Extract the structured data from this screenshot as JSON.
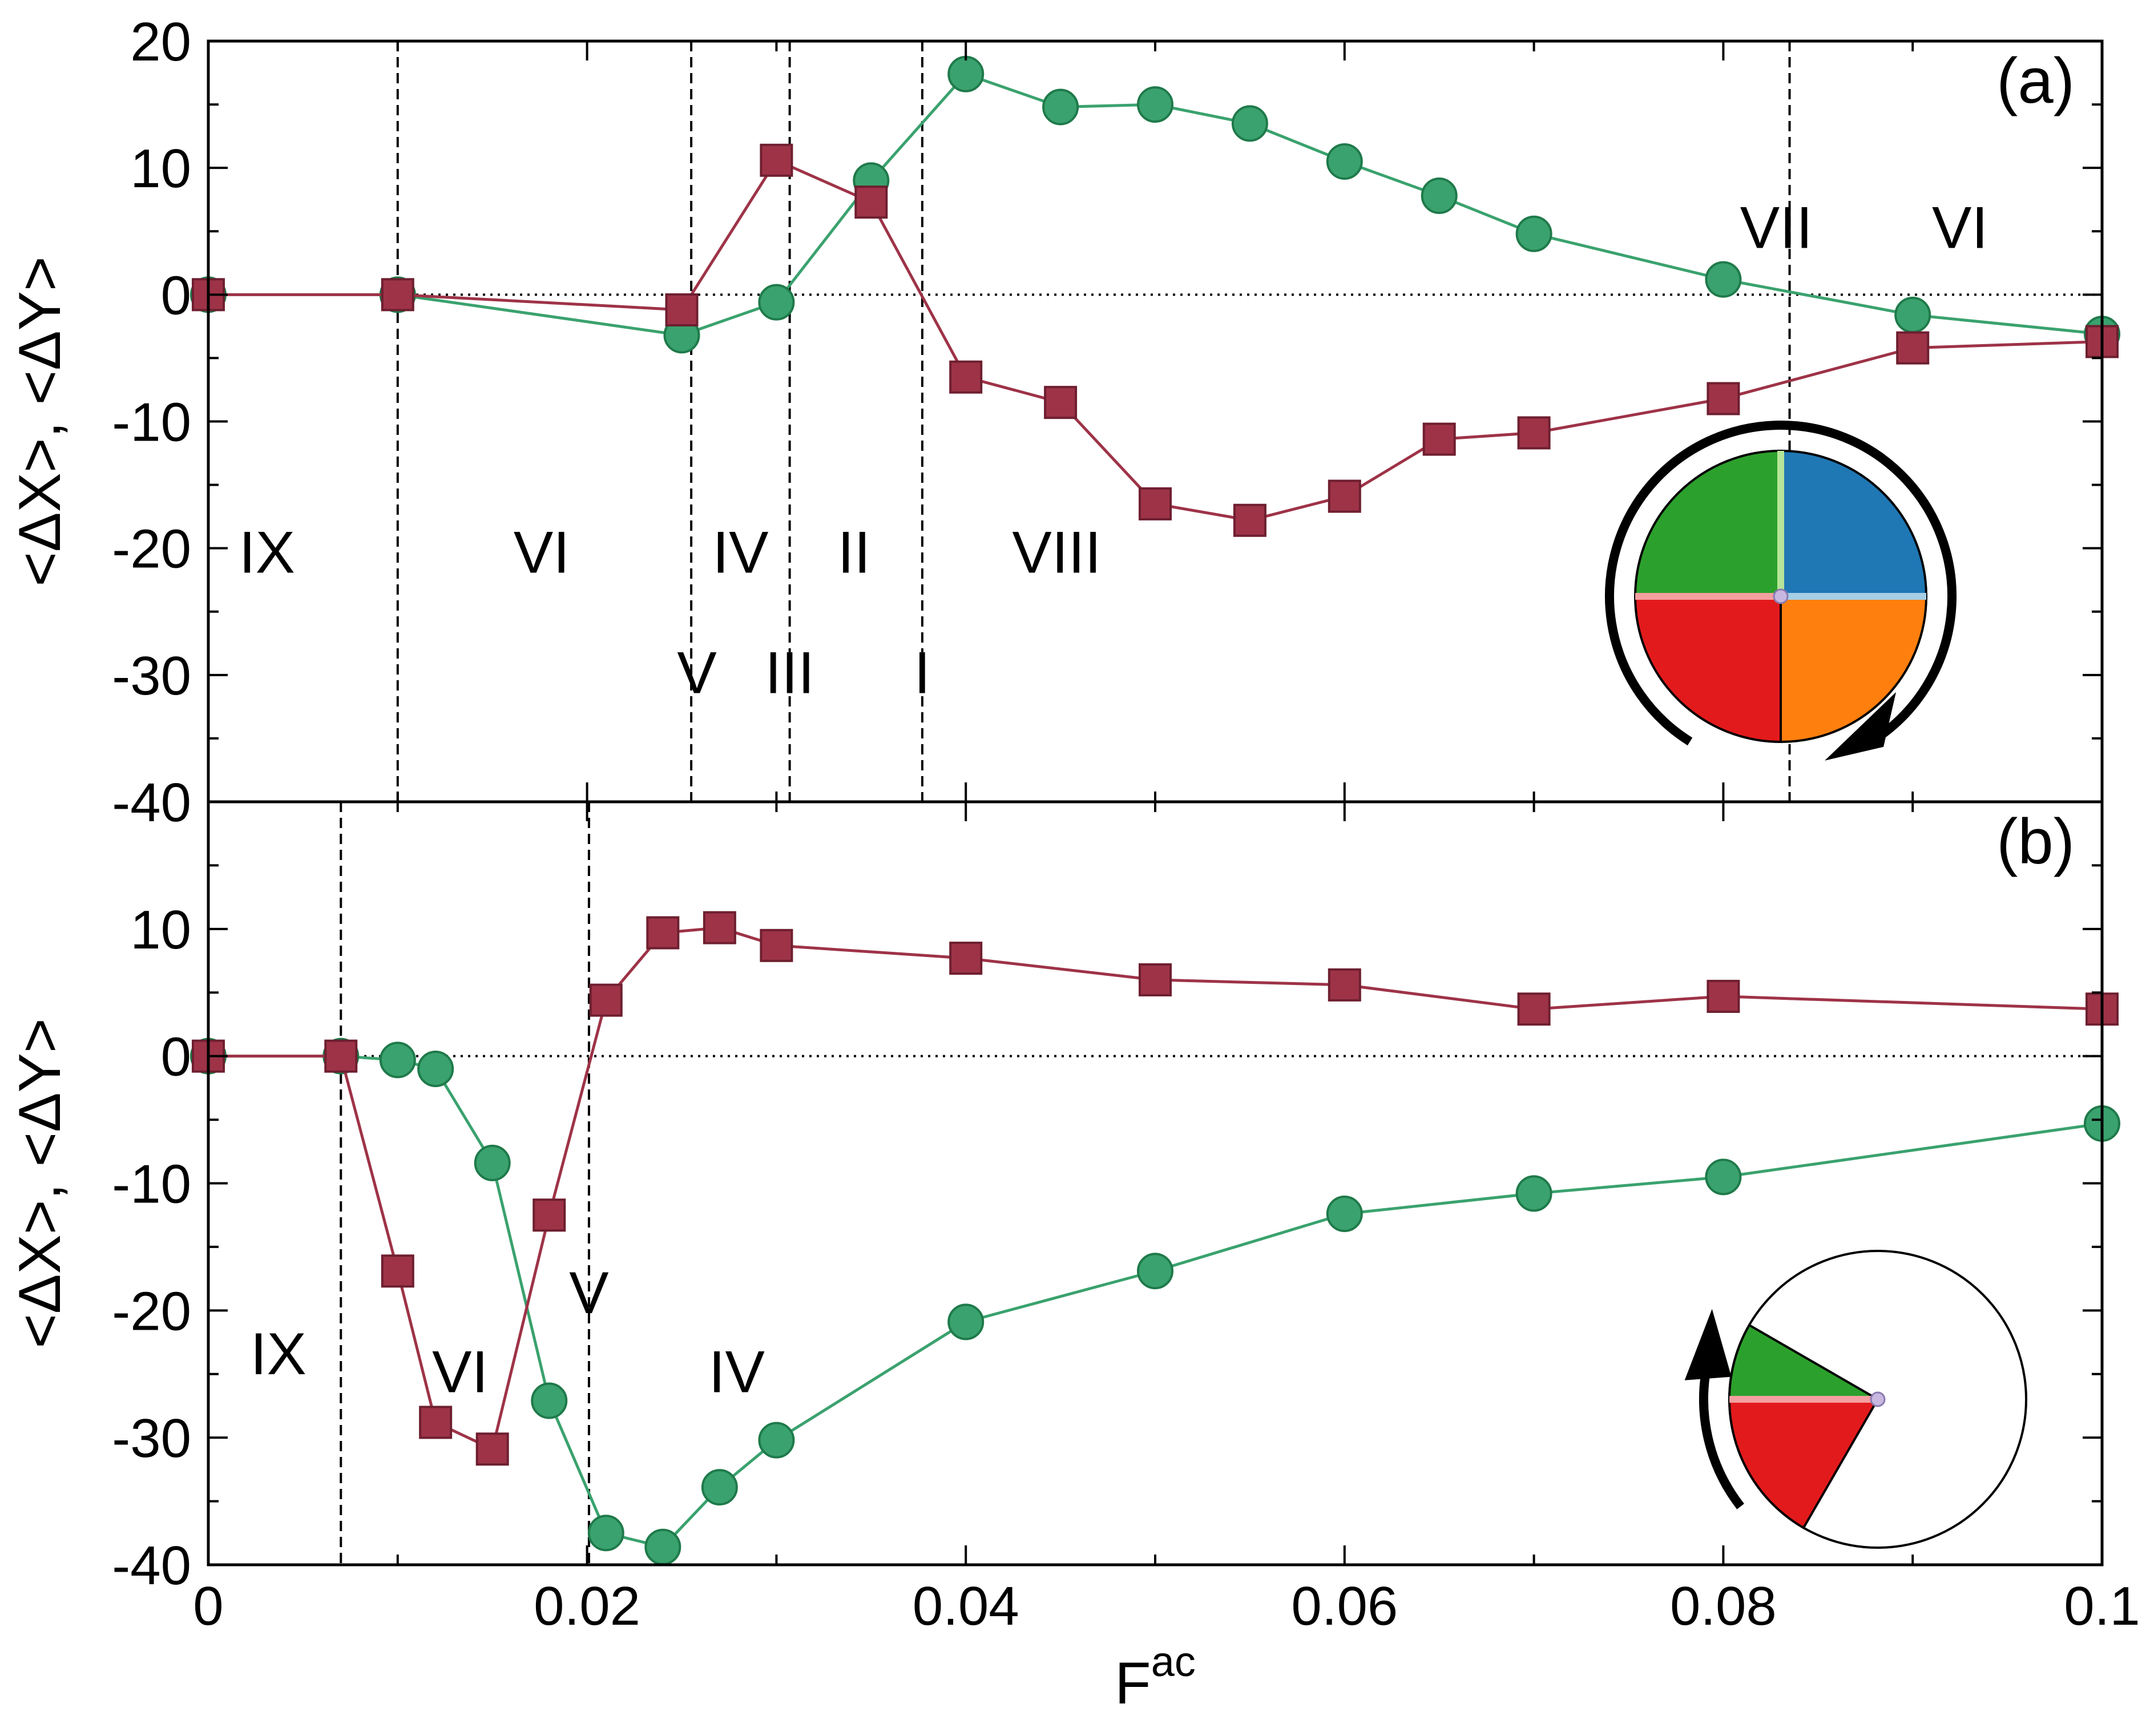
{
  "chart_data": [
    {
      "type": "line",
      "panel_label": "(a)",
      "xlabel": "F",
      "xlabel_sup": "ac",
      "ylabel": "<ΔX>, <ΔY>",
      "xlim": [
        0,
        0.1
      ],
      "ylim": [
        -40,
        20
      ],
      "yticks": [
        20,
        10,
        0,
        -10,
        -20,
        -30,
        -40
      ],
      "ytick_labels": [
        "20",
        "10",
        "0",
        "-10",
        "-20",
        "-30",
        "-40"
      ],
      "zero_line": true,
      "series": [
        {
          "marker": "circle",
          "color": "#3aa26e",
          "x": [
            0,
            0.01,
            0.025,
            0.03,
            0.035,
            0.04,
            0.045,
            0.05,
            0.055,
            0.06,
            0.065,
            0.07,
            0.08,
            0.09,
            0.1
          ],
          "y": [
            0,
            0,
            -3.2,
            -0.6,
            9,
            17.4,
            14.8,
            15,
            13.5,
            10.5,
            7.8,
            4.8,
            1.2,
            -1.6,
            -3.1
          ]
        },
        {
          "marker": "square",
          "color": "#9e3347",
          "x": [
            0,
            0.01,
            0.025,
            0.03,
            0.035,
            0.04,
            0.045,
            0.05,
            0.055,
            0.06,
            0.065,
            0.07,
            0.08,
            0.09,
            0.1
          ],
          "y": [
            0,
            0,
            -1.2,
            10.6,
            7.3,
            -6.5,
            -8.5,
            -16.5,
            -17.8,
            -15.9,
            -11.4,
            -10.9,
            -8.2,
            -4.2,
            -3.7
          ]
        }
      ],
      "vlines": [
        0.01,
        0.0255,
        0.0307,
        0.0377,
        0.0835
      ],
      "regions": [
        {
          "label": "IX",
          "x": 0.0031,
          "y": -20.3
        },
        {
          "label": "VI",
          "x": 0.0176,
          "y": -20.3
        },
        {
          "label": "IV",
          "x": 0.0281,
          "y": -20.3
        },
        {
          "label": "II",
          "x": 0.0341,
          "y": -20.3
        },
        {
          "label": "VIII",
          "x": 0.0448,
          "y": -20.3
        },
        {
          "label": "V",
          "x": 0.0258,
          "y": -29.8
        },
        {
          "label": "III",
          "x": 0.0307,
          "y": -29.8
        },
        {
          "label": "I",
          "x": 0.0377,
          "y": -29.8
        },
        {
          "label": "VII",
          "x": 0.0828,
          "y": 5.3
        },
        {
          "label": "VI",
          "x": 0.0925,
          "y": 5.3
        }
      ],
      "inset": {
        "type": "pie",
        "rotation": "clockwise",
        "sectors": [
          {
            "color": "#1f77b4",
            "from_deg": 0,
            "to_deg": 90
          },
          {
            "color": "#ff7f0e",
            "from_deg": -90,
            "to_deg": 0
          },
          {
            "color": "#e31a1c",
            "from_deg": 180,
            "to_deg": 270
          },
          {
            "color": "#2ca02c",
            "from_deg": 90,
            "to_deg": 180
          }
        ]
      }
    },
    {
      "type": "line",
      "panel_label": "(b)",
      "xlabel": "F",
      "xlabel_sup": "ac",
      "ylabel": "<ΔX>, <ΔY>",
      "xlim": [
        0,
        0.1
      ],
      "ylim": [
        -40,
        20
      ],
      "xticks": [
        0,
        0.02,
        0.04,
        0.06,
        0.08,
        0.1
      ],
      "xtick_labels": [
        "0",
        "0.02",
        "0.04",
        "0.06",
        "0.08",
        "0.1"
      ],
      "yticks": [
        10,
        0,
        -10,
        -20,
        -30,
        -40
      ],
      "ytick_labels": [
        "10",
        "0",
        "-10",
        "-20",
        "-30",
        "-40"
      ],
      "zero_line": true,
      "series": [
        {
          "marker": "circle",
          "color": "#3aa26e",
          "x": [
            0,
            0.007,
            0.01,
            0.012,
            0.015,
            0.018,
            0.021,
            0.024,
            0.027,
            0.03,
            0.04,
            0.05,
            0.06,
            0.07,
            0.08,
            0.1
          ],
          "y": [
            0,
            0,
            -0.3,
            -1,
            -8.4,
            -27.1,
            -37.5,
            -38.6,
            -33.9,
            -30.2,
            -20.9,
            -16.9,
            -12.4,
            -10.8,
            -9.5,
            -5.3
          ]
        },
        {
          "marker": "square",
          "color": "#9e3347",
          "x": [
            0,
            0.007,
            0.01,
            0.012,
            0.015,
            0.018,
            0.021,
            0.024,
            0.027,
            0.03,
            0.04,
            0.05,
            0.06,
            0.07,
            0.08,
            0.1
          ],
          "y": [
            0,
            0,
            null,
            -28.8,
            -30.9,
            -12.5,
            4.4,
            9.7,
            10.1,
            8.7,
            7.7,
            6,
            5.6,
            3.7,
            4.7,
            3.7
          ]
        }
      ],
      "square_extra": {
        "x": 0.01,
        "y": -16.9
      },
      "vlines": [
        0.007,
        0.0201
      ],
      "regions": [
        {
          "label": "IX",
          "x": 0.0037,
          "y": -23.4
        },
        {
          "label": "VI",
          "x": 0.0133,
          "y": -24.8
        },
        {
          "label": "V",
          "x": 0.0201,
          "y": -18.6
        },
        {
          "label": "IV",
          "x": 0.0279,
          "y": -24.8
        }
      ],
      "inset": {
        "type": "pie",
        "rotation": "counterclockwise",
        "sectors": [
          {
            "color": "#2ca02c",
            "from_deg": 150,
            "to_deg": 180
          },
          {
            "color": "#e31a1c",
            "from_deg": 180,
            "to_deg": 240
          }
        ]
      }
    }
  ]
}
